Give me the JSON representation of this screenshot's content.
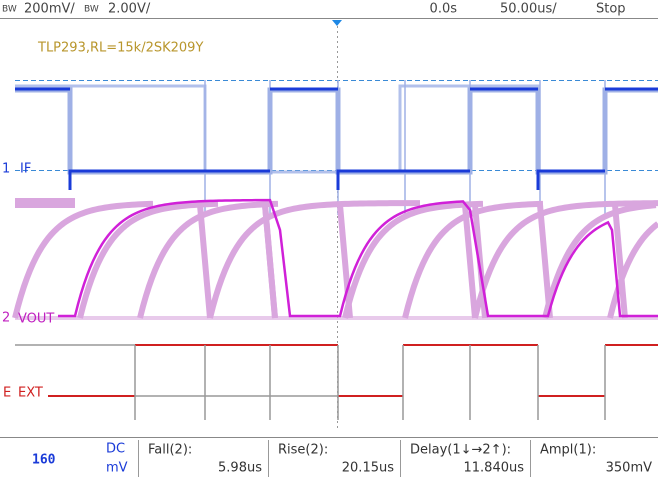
{
  "top_bar": {
    "ch1_bw": "BW",
    "ch1_scale": "200mV/",
    "ch2_bw": "BW",
    "ch2_scale": "2.00V/",
    "time_offset": "0.0s",
    "timebase": "50.00us/",
    "status": "Stop"
  },
  "annotation": "TLP293,RL=15k/2SK209Y",
  "channels": [
    {
      "number": "1",
      "label": "IF"
    },
    {
      "number": "2",
      "label": "VOUT"
    },
    {
      "number": "E",
      "label": "EXT"
    }
  ],
  "readout": {
    "value": "160",
    "coupling": "DC",
    "unit": "mV"
  },
  "measurements": [
    {
      "label": "Fall(2):",
      "value": "5.98us"
    },
    {
      "label": "Rise(2):",
      "value": "20.15us"
    },
    {
      "label": "Delay(1↓→2↑):",
      "value": "11.840us"
    },
    {
      "label": "Ampl(1):",
      "value": "350mV"
    }
  ]
}
